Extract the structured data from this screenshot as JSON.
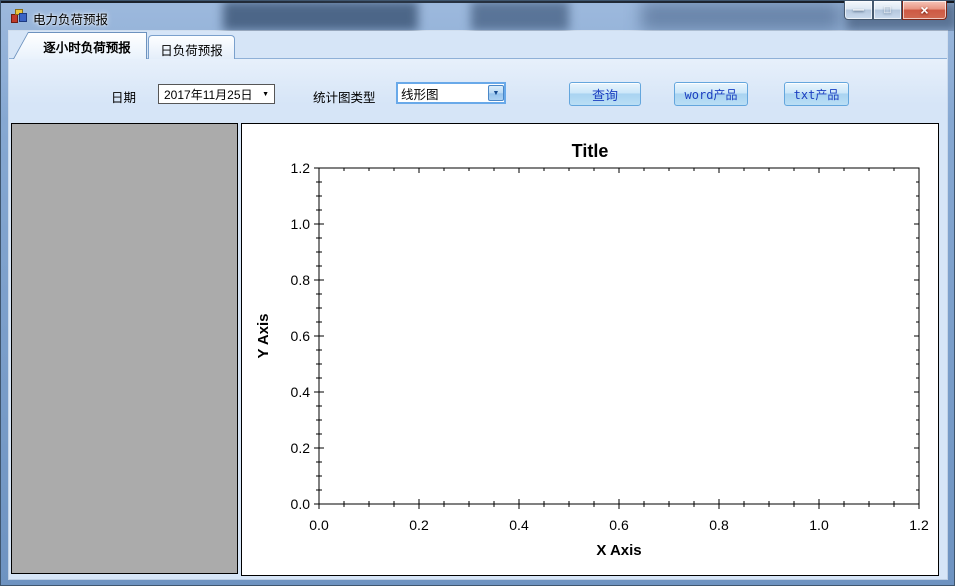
{
  "window": {
    "title": "电力负荷预报",
    "caption_buttons": {
      "minimize": "—",
      "maximize": "□",
      "close": "×"
    }
  },
  "tabs": [
    {
      "label": "逐小时负荷预报",
      "selected": true
    },
    {
      "label": "日负荷预报",
      "selected": false
    }
  ],
  "toolbar": {
    "date_label": "日期",
    "date_value": "2017年11月25日",
    "date_dropdown_icon": "▼",
    "chart_type_label": "统计图类型",
    "chart_type_value": "线形图",
    "chart_type_dropdown_icon": "▼",
    "buttons": {
      "query": "查询",
      "word": "word产品",
      "txt": "txt产品"
    }
  },
  "colors": {
    "frame-top": "#9db9dd",
    "frame-bottom": "#6e93c1",
    "content-bg": "#d6e5f7",
    "panel-gray": "#ababab",
    "combo-border": "#69a9e9",
    "button-border": "#64a6dd",
    "button-text": "#1b3fc0",
    "chart-axis": "#000000"
  },
  "chart_data": {
    "type": "line",
    "title": "Title",
    "xlabel": "X Axis",
    "ylabel": "Y Axis",
    "xlim": [
      0.0,
      1.2
    ],
    "ylim": [
      0.0,
      1.2
    ],
    "x_ticks": [
      0.0,
      0.2,
      0.4,
      0.6,
      0.8,
      1.0,
      1.2
    ],
    "y_ticks": [
      0.0,
      0.2,
      0.4,
      0.6,
      0.8,
      1.0,
      1.2
    ],
    "minor_divisions_per_major": 4,
    "tick_style": "crossing on left/bottom, inward on top/right",
    "grid": false,
    "legend": false,
    "series": []
  }
}
